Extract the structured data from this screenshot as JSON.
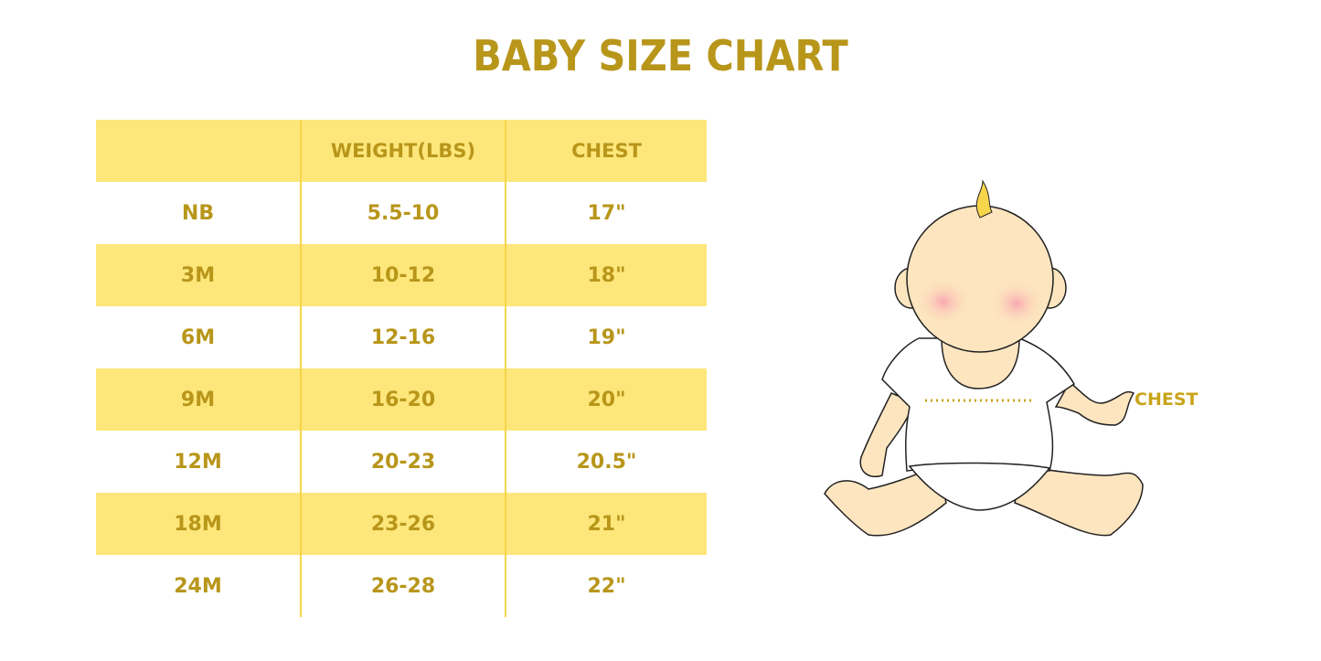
{
  "title": "BABY SIZE CHART",
  "table": {
    "headers": [
      "",
      "WEIGHT(LBS)",
      "CHEST"
    ],
    "rows": [
      [
        "NB",
        "5.5-10",
        "17\""
      ],
      [
        "3M",
        "10-12",
        "18\""
      ],
      [
        "6M",
        "12-16",
        "19\""
      ],
      [
        "9M",
        "16-20",
        "20\""
      ],
      [
        "12M",
        "20-23",
        "20.5\""
      ],
      [
        "18M",
        "23-26",
        "21\""
      ],
      [
        "24M",
        "26-28",
        "22\""
      ]
    ]
  },
  "illustration": {
    "chest_label": "CHEST"
  },
  "colors": {
    "text": "#b8961a",
    "row_fill": "#fde67a",
    "divider": "#f7d54a",
    "skin": "#fde5bf"
  }
}
